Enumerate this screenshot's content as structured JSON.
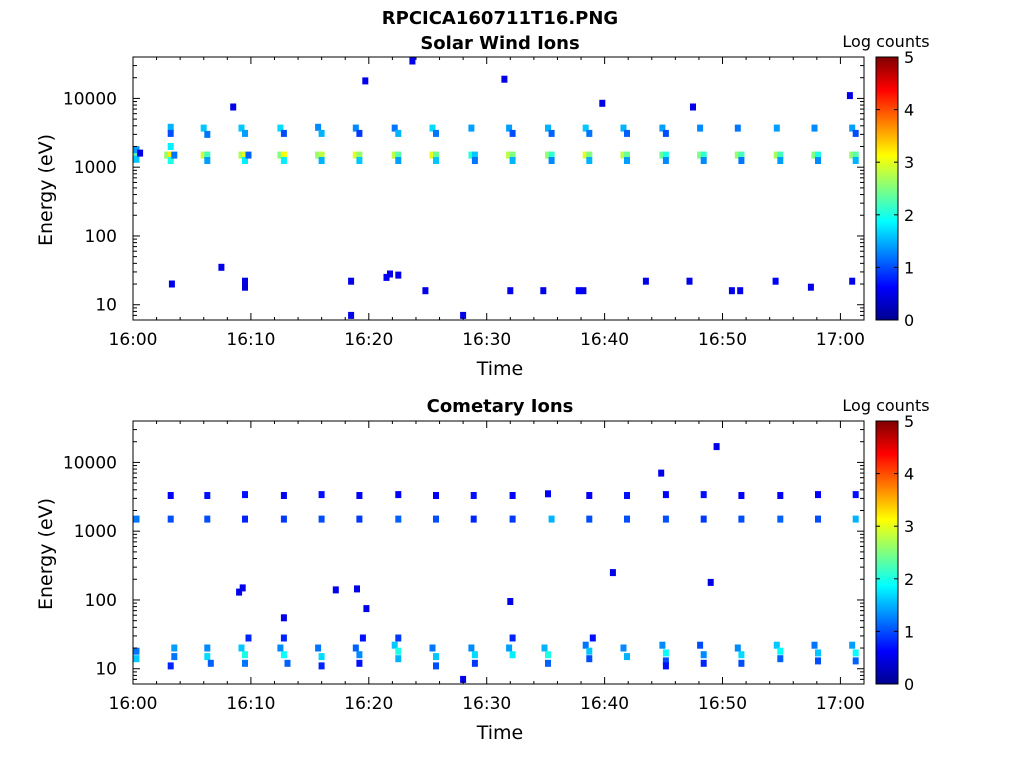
{
  "figure": {
    "title": "RPCICA160711T16.PNG"
  },
  "chart_data": [
    {
      "type": "heatmap",
      "title": "Solar Wind Ions",
      "xlabel": "Time",
      "ylabel": "Energy (eV)",
      "x_ticks": [
        "16:00",
        "16:10",
        "16:20",
        "16:30",
        "16:40",
        "16:50",
        "17:00"
      ],
      "y_scale": "log",
      "y_ticks": [
        10,
        100,
        1000,
        10000
      ],
      "y_tick_labels": [
        "10",
        "100",
        "1000",
        "10000"
      ],
      "xlim_minutes": [
        0,
        62
      ],
      "ylim": [
        6,
        40000
      ],
      "colorbar": {
        "label": "Log counts",
        "range": [
          0,
          5
        ],
        "ticks": [
          "0",
          "1",
          "2",
          "3",
          "4",
          "5"
        ],
        "colormap": "jet"
      },
      "cells": [
        [
          0.3,
          1500,
          2.3
        ],
        [
          0.3,
          1300,
          1.6
        ],
        [
          0.3,
          1800,
          1.4
        ],
        [
          0.6,
          1600,
          0.5
        ],
        [
          2.9,
          1500,
          2.6
        ],
        [
          3.2,
          1500,
          3.2
        ],
        [
          3.2,
          1250,
          2.0
        ],
        [
          3.2,
          2000,
          1.8
        ],
        [
          3.2,
          3800,
          1.5
        ],
        [
          3.2,
          3100,
          1.0
        ],
        [
          3.5,
          1500,
          1.2
        ],
        [
          6.0,
          1500,
          2.9
        ],
        [
          6.3,
          1500,
          2.2
        ],
        [
          6.3,
          1250,
          1.4
        ],
        [
          6.0,
          3700,
          1.6
        ],
        [
          6.3,
          3000,
          1.2
        ],
        [
          9.2,
          1500,
          2.7
        ],
        [
          9.5,
          1500,
          3.0
        ],
        [
          9.5,
          1250,
          1.8
        ],
        [
          9.2,
          3700,
          1.6
        ],
        [
          9.5,
          3100,
          1.4
        ],
        [
          9.8,
          1500,
          1.1
        ],
        [
          12.5,
          1500,
          2.5
        ],
        [
          12.8,
          1500,
          3.1
        ],
        [
          12.8,
          1250,
          1.8
        ],
        [
          12.5,
          3700,
          1.7
        ],
        [
          12.8,
          3100,
          1.0
        ],
        [
          15.7,
          1500,
          2.6
        ],
        [
          16.0,
          1500,
          2.8
        ],
        [
          16.0,
          1250,
          1.5
        ],
        [
          15.7,
          3800,
          1.3
        ],
        [
          16.0,
          3100,
          1.5
        ],
        [
          18.9,
          1500,
          3.0
        ],
        [
          19.2,
          1500,
          2.6
        ],
        [
          19.2,
          1250,
          1.6
        ],
        [
          18.9,
          3700,
          1.3
        ],
        [
          19.2,
          3100,
          0.9
        ],
        [
          22.2,
          1500,
          2.8
        ],
        [
          22.5,
          1500,
          2.3
        ],
        [
          22.5,
          1250,
          1.4
        ],
        [
          22.2,
          3700,
          1.2
        ],
        [
          22.5,
          3100,
          1.5
        ],
        [
          25.4,
          1500,
          3.0
        ],
        [
          25.7,
          1500,
          2.4
        ],
        [
          25.7,
          1250,
          1.6
        ],
        [
          25.4,
          3700,
          1.7
        ],
        [
          25.7,
          3100,
          1.2
        ],
        [
          28.7,
          1500,
          2.1
        ],
        [
          29.0,
          1500,
          1.6
        ],
        [
          29.0,
          1250,
          1.2
        ],
        [
          28.7,
          3700,
          1.4
        ],
        [
          31.9,
          1500,
          2.8
        ],
        [
          32.2,
          1500,
          2.5
        ],
        [
          32.2,
          1250,
          1.5
        ],
        [
          31.9,
          3700,
          1.4
        ],
        [
          32.2,
          3100,
          1.0
        ],
        [
          35.2,
          1500,
          2.6
        ],
        [
          35.5,
          1500,
          2.1
        ],
        [
          35.5,
          1250,
          1.3
        ],
        [
          35.2,
          3700,
          1.5
        ],
        [
          35.5,
          3100,
          1.1
        ],
        [
          38.4,
          1500,
          3.0
        ],
        [
          38.7,
          1500,
          2.5
        ],
        [
          38.7,
          1250,
          1.5
        ],
        [
          38.4,
          3700,
          1.6
        ],
        [
          38.7,
          3100,
          1.2
        ],
        [
          41.6,
          1500,
          2.8
        ],
        [
          41.9,
          1500,
          2.4
        ],
        [
          41.9,
          1250,
          1.4
        ],
        [
          41.6,
          3700,
          1.5
        ],
        [
          41.9,
          3100,
          1.1
        ],
        [
          44.9,
          1500,
          2.4
        ],
        [
          45.2,
          1500,
          2.0
        ],
        [
          45.2,
          1250,
          1.3
        ],
        [
          44.9,
          3700,
          1.4
        ],
        [
          45.2,
          3100,
          1.0
        ],
        [
          48.1,
          1500,
          2.5
        ],
        [
          48.4,
          1500,
          2.1
        ],
        [
          48.4,
          1250,
          1.3
        ],
        [
          48.1,
          3700,
          1.3
        ],
        [
          51.3,
          1500,
          2.6
        ],
        [
          51.6,
          1500,
          2.2
        ],
        [
          51.6,
          1250,
          1.2
        ],
        [
          51.3,
          3700,
          1.2
        ],
        [
          54.6,
          1500,
          2.7
        ],
        [
          54.9,
          1500,
          2.2
        ],
        [
          54.9,
          1250,
          1.4
        ],
        [
          54.6,
          3700,
          1.4
        ],
        [
          57.8,
          1500,
          2.5
        ],
        [
          58.1,
          1500,
          2.0
        ],
        [
          58.1,
          1250,
          1.3
        ],
        [
          57.8,
          3700,
          1.3
        ],
        [
          61.0,
          1500,
          2.6
        ],
        [
          61.3,
          1500,
          2.3
        ],
        [
          61.3,
          1250,
          1.5
        ],
        [
          61.0,
          3700,
          1.4
        ],
        [
          61.3,
          3100,
          1.0
        ],
        [
          3.3,
          20,
          0.5
        ],
        [
          7.5,
          35,
          0.5
        ],
        [
          9.5,
          22,
          0.5
        ],
        [
          9.5,
          18,
          0.4
        ],
        [
          18.5,
          22,
          0.5
        ],
        [
          21.5,
          25,
          0.6
        ],
        [
          21.8,
          28,
          0.5
        ],
        [
          22.5,
          27,
          0.5
        ],
        [
          24.8,
          16,
          0.5
        ],
        [
          32.0,
          16,
          0.5
        ],
        [
          34.8,
          16,
          0.5
        ],
        [
          37.8,
          16,
          0.6
        ],
        [
          38.2,
          16,
          0.5
        ],
        [
          43.5,
          22,
          0.5
        ],
        [
          47.2,
          22,
          0.5
        ],
        [
          50.8,
          16,
          0.5
        ],
        [
          51.5,
          16,
          0.5
        ],
        [
          54.5,
          22,
          0.6
        ],
        [
          57.5,
          18,
          0.5
        ],
        [
          61.0,
          22,
          0.5
        ],
        [
          18.5,
          7,
          0.5
        ],
        [
          28.0,
          7,
          0.5
        ],
        [
          23.7,
          35000,
          0.5
        ],
        [
          19.7,
          18000,
          0.5
        ],
        [
          31.5,
          19000,
          0.5
        ],
        [
          8.5,
          7500,
          0.5
        ],
        [
          47.5,
          7500,
          0.5
        ],
        [
          39.8,
          8500,
          0.5
        ],
        [
          60.8,
          11000,
          0.5
        ]
      ]
    },
    {
      "type": "heatmap",
      "title": "Cometary Ions",
      "xlabel": "Time",
      "ylabel": "Energy (eV)",
      "x_ticks": [
        "16:00",
        "16:10",
        "16:20",
        "16:30",
        "16:40",
        "16:50",
        "17:00"
      ],
      "y_scale": "log",
      "y_ticks": [
        10,
        100,
        1000,
        10000
      ],
      "y_tick_labels": [
        "10",
        "100",
        "1000",
        "10000"
      ],
      "xlim_minutes": [
        0,
        62
      ],
      "ylim": [
        6,
        40000
      ],
      "colorbar": {
        "label": "Log counts",
        "range": [
          0,
          5
        ],
        "ticks": [
          "0",
          "1",
          "2",
          "3",
          "4",
          "5"
        ],
        "colormap": "jet"
      },
      "cells": [
        [
          0.3,
          1500,
          1.2
        ],
        [
          3.2,
          1500,
          1.0
        ],
        [
          3.2,
          3300,
          0.6
        ],
        [
          6.3,
          1500,
          1.0
        ],
        [
          6.3,
          3300,
          0.7
        ],
        [
          9.5,
          1500,
          0.8
        ],
        [
          9.5,
          3400,
          0.7
        ],
        [
          12.8,
          1500,
          0.9
        ],
        [
          12.8,
          3300,
          0.6
        ],
        [
          16.0,
          1500,
          1.0
        ],
        [
          16.0,
          3400,
          0.7
        ],
        [
          19.2,
          1500,
          0.9
        ],
        [
          19.2,
          3300,
          0.6
        ],
        [
          22.5,
          1500,
          1.1
        ],
        [
          22.5,
          3400,
          0.6
        ],
        [
          25.7,
          1500,
          1.0
        ],
        [
          25.7,
          3300,
          0.6
        ],
        [
          28.9,
          1500,
          0.8
        ],
        [
          28.9,
          3300,
          0.7
        ],
        [
          32.2,
          1500,
          0.9
        ],
        [
          32.2,
          3300,
          0.6
        ],
        [
          35.5,
          1500,
          1.5
        ],
        [
          35.2,
          3500,
          0.6
        ],
        [
          38.7,
          1500,
          1.0
        ],
        [
          38.7,
          3300,
          0.6
        ],
        [
          41.9,
          1500,
          1.0
        ],
        [
          41.9,
          3300,
          0.7
        ],
        [
          45.2,
          1500,
          1.0
        ],
        [
          45.2,
          3400,
          0.6
        ],
        [
          48.4,
          1500,
          0.9
        ],
        [
          48.4,
          3400,
          0.7
        ],
        [
          51.6,
          1500,
          1.0
        ],
        [
          51.6,
          3300,
          0.6
        ],
        [
          54.9,
          1500,
          1.1
        ],
        [
          54.9,
          3300,
          0.6
        ],
        [
          58.1,
          1500,
          1.0
        ],
        [
          58.1,
          3400,
          0.6
        ],
        [
          61.3,
          1500,
          1.5
        ],
        [
          61.3,
          3400,
          0.7
        ],
        [
          0.3,
          18,
          1.2
        ],
        [
          0.3,
          14,
          1.6
        ],
        [
          3.5,
          20,
          1.4
        ],
        [
          3.5,
          15,
          1.2
        ],
        [
          3.2,
          11,
          0.8
        ],
        [
          6.3,
          20,
          1.3
        ],
        [
          6.3,
          15,
          1.7
        ],
        [
          6.6,
          12,
          1.1
        ],
        [
          9.2,
          20,
          1.6
        ],
        [
          9.5,
          16,
          2.0
        ],
        [
          9.5,
          12,
          1.2
        ],
        [
          9.8,
          28,
          0.8
        ],
        [
          12.5,
          20,
          1.3
        ],
        [
          12.8,
          16,
          1.9
        ],
        [
          12.8,
          28,
          0.8
        ],
        [
          13.1,
          12,
          1.1
        ],
        [
          15.7,
          20,
          1.2
        ],
        [
          16.0,
          15,
          1.7
        ],
        [
          16.0,
          11,
          0.8
        ],
        [
          18.9,
          20,
          1.1
        ],
        [
          19.2,
          16,
          1.3
        ],
        [
          19.2,
          12,
          0.7
        ],
        [
          19.5,
          28,
          0.7
        ],
        [
          22.2,
          22,
          1.6
        ],
        [
          22.5,
          18,
          2.0
        ],
        [
          22.5,
          14,
          1.5
        ],
        [
          22.5,
          28,
          0.9
        ],
        [
          25.4,
          20,
          1.2
        ],
        [
          25.7,
          15,
          1.6
        ],
        [
          25.7,
          11,
          1.0
        ],
        [
          28.7,
          20,
          1.3
        ],
        [
          29.0,
          16,
          1.7
        ],
        [
          29.0,
          12,
          0.9
        ],
        [
          31.9,
          20,
          1.4
        ],
        [
          32.2,
          16,
          1.8
        ],
        [
          32.2,
          28,
          0.8
        ],
        [
          34.9,
          20,
          1.5
        ],
        [
          35.2,
          16,
          2.0
        ],
        [
          35.2,
          12,
          1.1
        ],
        [
          38.4,
          22,
          1.2
        ],
        [
          38.7,
          18,
          1.6
        ],
        [
          38.7,
          14,
          1.0
        ],
        [
          39.0,
          28,
          0.7
        ],
        [
          41.6,
          20,
          1.3
        ],
        [
          41.9,
          15,
          1.5
        ],
        [
          44.9,
          22,
          1.3
        ],
        [
          45.2,
          17,
          1.9
        ],
        [
          45.2,
          13,
          1.0
        ],
        [
          45.2,
          11,
          0.7
        ],
        [
          48.1,
          22,
          1.0
        ],
        [
          48.4,
          16,
          1.3
        ],
        [
          48.4,
          12,
          0.8
        ],
        [
          51.3,
          20,
          1.3
        ],
        [
          51.6,
          16,
          1.7
        ],
        [
          51.6,
          12,
          1.0
        ],
        [
          54.6,
          22,
          1.6
        ],
        [
          54.9,
          18,
          1.9
        ],
        [
          54.9,
          14,
          1.1
        ],
        [
          57.8,
          22,
          1.2
        ],
        [
          58.1,
          17,
          1.6
        ],
        [
          58.1,
          13,
          1.0
        ],
        [
          61.0,
          22,
          1.4
        ],
        [
          61.3,
          17,
          1.9
        ],
        [
          61.3,
          13,
          1.1
        ],
        [
          28.0,
          7,
          0.5
        ],
        [
          9.0,
          130,
          0.5
        ],
        [
          9.3,
          150,
          0.5
        ],
        [
          12.8,
          55,
          0.5
        ],
        [
          17.2,
          140,
          0.5
        ],
        [
          19.0,
          145,
          0.5
        ],
        [
          19.8,
          75,
          0.5
        ],
        [
          32.0,
          95,
          0.5
        ],
        [
          40.7,
          250,
          0.5
        ],
        [
          49.0,
          180,
          0.5
        ],
        [
          49.5,
          17000,
          0.5
        ],
        [
          44.8,
          7000,
          0.5
        ]
      ]
    }
  ]
}
